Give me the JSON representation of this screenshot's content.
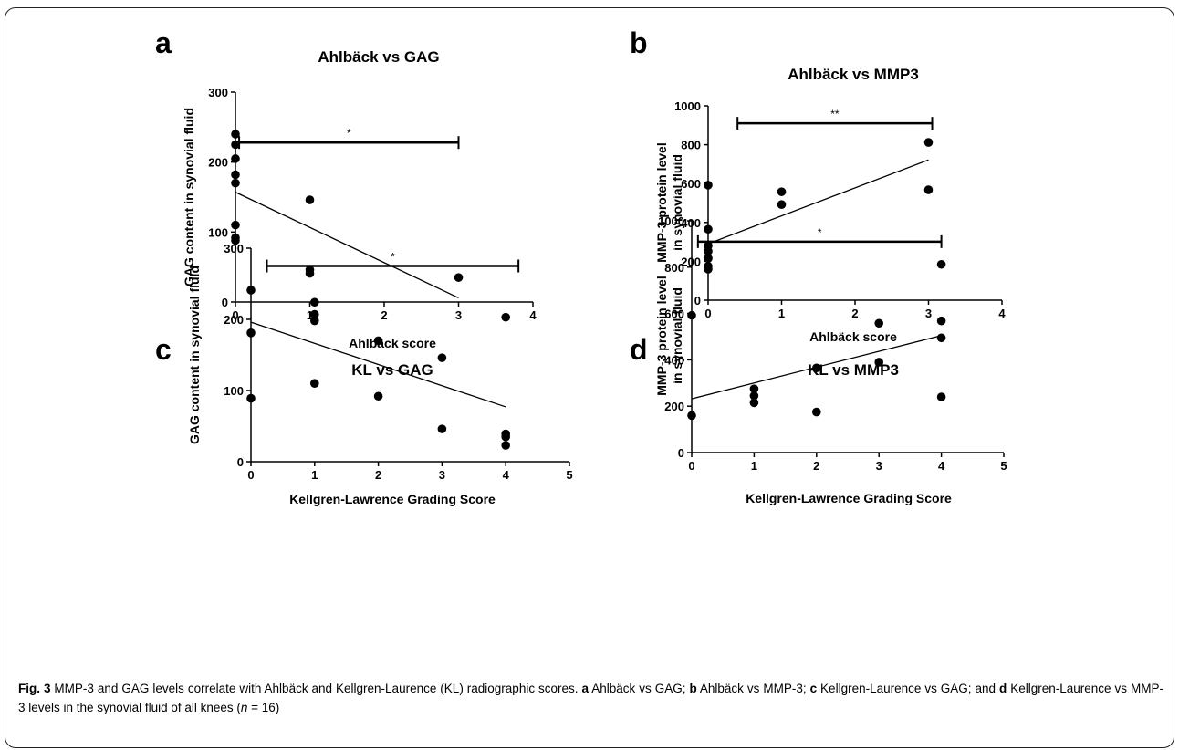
{
  "chart_data": [
    {
      "type": "scatter",
      "panel": "a",
      "title": "Ahlbäck vs GAG",
      "xlabel": "Ahlbäck score",
      "ylabel": "GAG content in synovial fluid",
      "xlim": [
        0,
        4
      ],
      "ylim": [
        0,
        300
      ],
      "xticks": [
        "0",
        "1",
        "2",
        "3",
        "4"
      ],
      "yticks": [
        "0",
        "100",
        "200",
        "300"
      ],
      "points": [
        [
          0,
          240
        ],
        [
          0,
          225
        ],
        [
          0,
          205
        ],
        [
          0,
          182
        ],
        [
          0,
          170
        ],
        [
          0,
          110
        ],
        [
          0,
          92
        ],
        [
          0,
          88
        ],
        [
          1,
          146
        ],
        [
          1,
          46
        ],
        [
          1,
          41
        ],
        [
          3,
          35
        ]
      ],
      "trend": [
        [
          0,
          157
        ],
        [
          3,
          6
        ]
      ],
      "significance": {
        "label": "*",
        "x": [
          0.05,
          3
        ],
        "y": 228
      }
    },
    {
      "type": "scatter",
      "panel": "b",
      "title": "Ahlbäck vs  MMP3",
      "xlabel": "Ahlbäck score",
      "ylabel": "MMP-3 protein level in synovial fluid",
      "xlim": [
        0,
        4
      ],
      "ylim": [
        0,
        1000
      ],
      "xticks": [
        "0",
        "1",
        "2",
        "3",
        "4"
      ],
      "yticks": [
        "0",
        "200",
        "400",
        "600",
        "800",
        "1000"
      ],
      "points": [
        [
          0,
          592
        ],
        [
          0,
          365
        ],
        [
          0,
          280
        ],
        [
          0,
          252
        ],
        [
          0,
          215
        ],
        [
          0,
          175
        ],
        [
          0,
          160
        ],
        [
          1,
          558
        ],
        [
          1,
          492
        ],
        [
          3,
          812
        ],
        [
          3,
          568
        ]
      ],
      "trend": [
        [
          0,
          290
        ],
        [
          3,
          722
        ]
      ],
      "significance": {
        "label": "**",
        "x": [
          0.4,
          3.05
        ],
        "y": 910
      }
    },
    {
      "type": "scatter",
      "panel": "c",
      "title": "KL vs GAG",
      "xlabel": "Kellgren-Lawrence Grading Score",
      "ylabel": "GAG content in synovial fluid",
      "xlim": [
        0,
        5
      ],
      "ylim": [
        0,
        300
      ],
      "xticks": [
        "0",
        "1",
        "2",
        "3",
        "4",
        "5"
      ],
      "yticks": [
        "0",
        "100",
        "200",
        "300"
      ],
      "points": [
        [
          0,
          241
        ],
        [
          0,
          181
        ],
        [
          0,
          89
        ],
        [
          1,
          224
        ],
        [
          1,
          207
        ],
        [
          1,
          198
        ],
        [
          1,
          110
        ],
        [
          2,
          170
        ],
        [
          2,
          92
        ],
        [
          3,
          146
        ],
        [
          3,
          46
        ],
        [
          4,
          203
        ],
        [
          4,
          39
        ],
        [
          4,
          35
        ],
        [
          4,
          23
        ]
      ],
      "trend": [
        [
          0,
          196
        ],
        [
          4,
          77
        ]
      ],
      "significance": {
        "label": "*",
        "x": [
          0.25,
          4.2
        ],
        "y": 275
      }
    },
    {
      "type": "scatter",
      "panel": "d",
      "title": "KL vs MMP3",
      "xlabel": "Kellgren-Lawrence Grading Score",
      "ylabel": "MMP-3 protein level in synovial fluid",
      "xlim": [
        0,
        5
      ],
      "ylim": [
        0,
        1000
      ],
      "xticks": [
        "0",
        "1",
        "2",
        "3",
        "4",
        "5"
      ],
      "yticks": [
        "0",
        "200",
        "400",
        "600",
        "800",
        "1000"
      ],
      "points": [
        [
          0,
          592
        ],
        [
          0,
          160
        ],
        [
          1,
          275
        ],
        [
          1,
          245
        ],
        [
          1,
          215
        ],
        [
          2,
          365
        ],
        [
          2,
          175
        ],
        [
          3,
          558
        ],
        [
          3,
          390
        ],
        [
          4,
          812
        ],
        [
          4,
          568
        ],
        [
          4,
          495
        ],
        [
          4,
          240
        ]
      ],
      "trend": [
        [
          0,
          232
        ],
        [
          4,
          505
        ]
      ],
      "significance": {
        "label": "*",
        "x": [
          0.1,
          4
        ],
        "y": 910
      }
    }
  ],
  "caption": {
    "fig": "Fig. 3",
    "text_1": " MMP-3 and GAG levels correlate with Ahlbäck and Kellgren-Laurence (KL) radiographic scores. ",
    "a": "a",
    "text_2": " Ahlbäck vs GAG; ",
    "b": "b",
    "text_3": " Ahlbäck vs MMP-3; ",
    "c": "c",
    "text_4": " Kellgren-Laurence vs GAG; and ",
    "d": "d",
    "text_5": " Kellgren-Laurence vs MMP-3 levels in the synovial fluid of all knees (",
    "n": "n",
    "text_6": " = 16)"
  }
}
